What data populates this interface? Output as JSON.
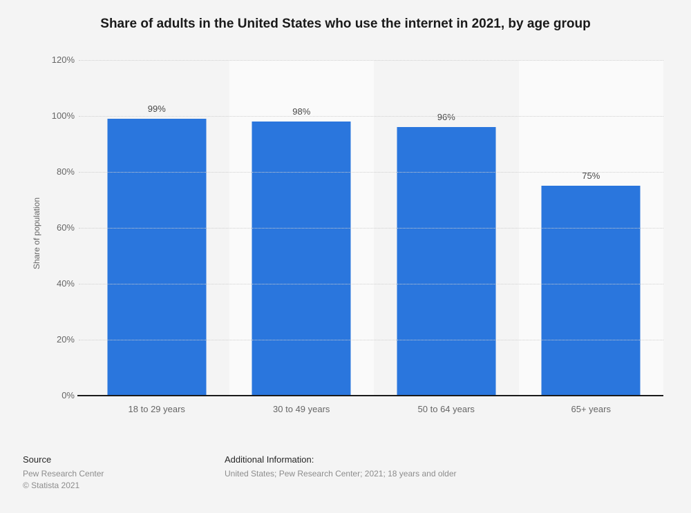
{
  "chart_data": {
    "type": "bar",
    "title": "Share of adults in the United States who use the internet in 2021, by age group",
    "categories": [
      "18 to 29 years",
      "30 to 49 years",
      "50 to 64 years",
      "65+ years"
    ],
    "values": [
      99,
      98,
      96,
      75
    ],
    "value_labels": [
      "99%",
      "98%",
      "96%",
      "75%"
    ],
    "xlabel": "",
    "ylabel": "Share of population",
    "ylim": [
      0,
      120
    ],
    "yticks": [
      "120%",
      "100%",
      "80%",
      "60%",
      "40%",
      "20%",
      "0%"
    ],
    "grid": "horizontal-dotted",
    "legend_position": "none",
    "bar_color": "#2a76dd",
    "band_light_color": "#fafafa",
    "background_color": "#f4f4f4"
  },
  "footer": {
    "source_label": "Source",
    "source_lines": [
      "Pew Research Center",
      "© Statista 2021"
    ],
    "additional_label": "Additional Information:",
    "additional_text": "United States; Pew Research Center; 2021; 18 years and older"
  }
}
